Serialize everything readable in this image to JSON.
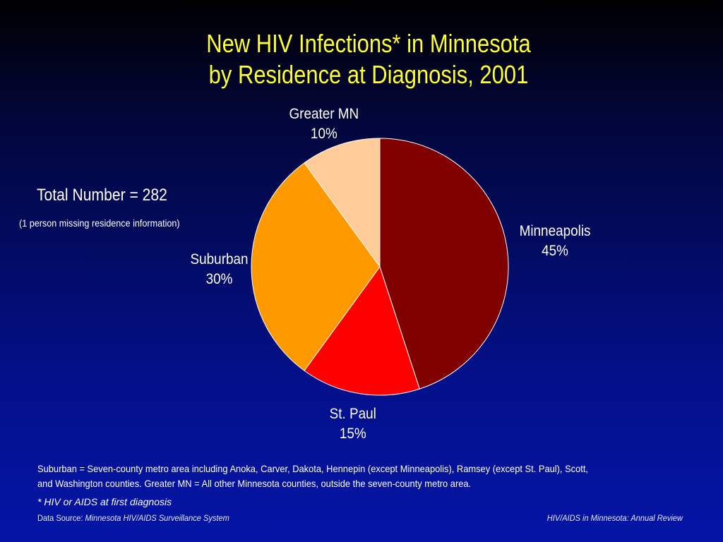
{
  "slide": {
    "title_line1": "New HIV Infections* in Minnesota",
    "title_line2": "by Residence at Diagnosis, 2001",
    "total_number": "Total Number = 282",
    "missing_note": "(1 person missing residence information)",
    "footnote_line1": "Suburban = Seven-county metro area including Anoka, Carver, Dakota, Hennepin (except Minneapolis), Ramsey (except St. Paul), Scott,",
    "footnote_line2": "and Washington counties.  Greater MN = All other Minnesota counties, outside the seven-county metro area.",
    "asterisk_note": "* HIV or AIDS at first diagnosis",
    "source_prefix": "Data Source: ",
    "source_name": "Minnesota HIV/AIDS Surveillance System",
    "publication": "HIV/AIDS in Minnesota: Annual Review"
  },
  "chart_data": {
    "type": "pie",
    "title": "New HIV Infections* in Minnesota by Residence at Diagnosis, 2001",
    "categories": [
      "Minneapolis",
      "St. Paul",
      "Suburban",
      "Greater MN"
    ],
    "values": [
      45,
      15,
      30,
      10
    ],
    "labels": [
      "45%",
      "15%",
      "30%",
      "10%"
    ],
    "colors": [
      "#800000",
      "#ff0000",
      "#ff9900",
      "#ffcc99"
    ],
    "start_angle": "12 o'clock",
    "direction": "clockwise",
    "legend": "none"
  }
}
